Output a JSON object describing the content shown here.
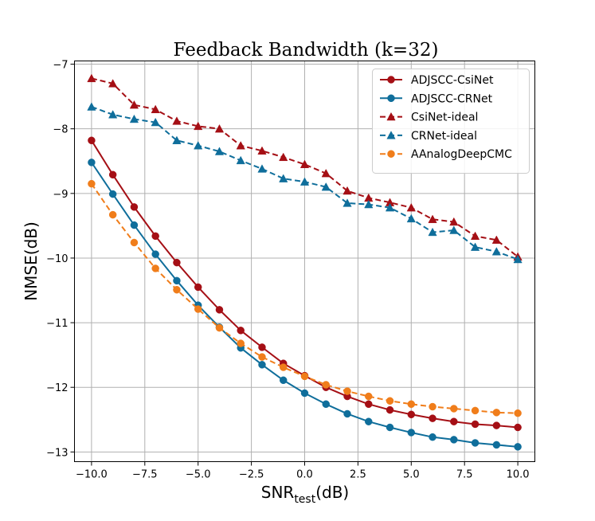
{
  "chart_data": {
    "type": "line",
    "title": "Feedback Bandwidth (k=32)",
    "xlabel": {
      "main": "SNR",
      "subscript": "test",
      "suffix": "(dB)"
    },
    "ylabel": "NMSE(dB)",
    "xlim": [
      -10.8,
      10.8
    ],
    "ylim": [
      -13.15,
      -6.95
    ],
    "xticks": [
      -10.0,
      -7.5,
      -5.0,
      -2.5,
      0.0,
      2.5,
      5.0,
      7.5,
      10.0
    ],
    "xtick_labels": [
      "−10.0",
      "−7.5",
      "−5.0",
      "−2.5",
      "0.0",
      "2.5",
      "5.0",
      "7.5",
      "10.0"
    ],
    "yticks": [
      -13,
      -12,
      -11,
      -10,
      -9,
      -8,
      -7
    ],
    "ytick_labels": [
      "−13",
      "−12",
      "−11",
      "−10",
      "−9",
      "−8",
      "−7"
    ],
    "grid": true,
    "legend_position": "top-right",
    "x": [
      -10,
      -9,
      -8,
      -7,
      -6,
      -5,
      -4,
      -3,
      -2,
      -1,
      0,
      1,
      2,
      3,
      4,
      5,
      6,
      7,
      8,
      9,
      10
    ],
    "series": [
      {
        "name": "ADJSCC-CsiNet",
        "color": "#a50f15",
        "dash": "solid",
        "marker": "circle",
        "values": [
          -8.18,
          -8.71,
          -9.21,
          -9.66,
          -10.07,
          -10.45,
          -10.8,
          -11.12,
          -11.38,
          -11.63,
          -11.82,
          -12.0,
          -12.14,
          -12.26,
          -12.35,
          -12.42,
          -12.48,
          -12.53,
          -12.57,
          -12.59,
          -12.62
        ]
      },
      {
        "name": "ADJSCC-CRNet",
        "color": "#0f6e9b",
        "dash": "solid",
        "marker": "circle",
        "values": [
          -8.52,
          -9.01,
          -9.49,
          -9.94,
          -10.35,
          -10.73,
          -11.07,
          -11.39,
          -11.65,
          -11.89,
          -12.09,
          -12.26,
          -12.41,
          -12.53,
          -12.62,
          -12.7,
          -12.77,
          -12.81,
          -12.86,
          -12.89,
          -12.92
        ]
      },
      {
        "name": "CsiNet-ideal",
        "color": "#a50f15",
        "dash": "dashed",
        "marker": "triangle",
        "values": [
          -7.22,
          -7.3,
          -7.63,
          -7.7,
          -7.88,
          -7.96,
          -8.0,
          -8.26,
          -8.34,
          -8.44,
          -8.55,
          -8.69,
          -8.96,
          -9.07,
          -9.14,
          -9.22,
          -9.4,
          -9.44,
          -9.66,
          -9.72,
          -9.98
        ]
      },
      {
        "name": "CRNet-ideal",
        "color": "#0f6e9b",
        "dash": "dashed",
        "marker": "triangle",
        "values": [
          -7.66,
          -7.78,
          -7.85,
          -7.9,
          -8.18,
          -8.26,
          -8.35,
          -8.49,
          -8.62,
          -8.77,
          -8.82,
          -8.9,
          -9.15,
          -9.17,
          -9.22,
          -9.39,
          -9.6,
          -9.57,
          -9.83,
          -9.9,
          -10.02
        ]
      },
      {
        "name": "AAnalogDeepCMC",
        "color": "#f07d1a",
        "dash": "dashed",
        "marker": "circle",
        "values": [
          -8.85,
          -9.33,
          -9.76,
          -10.16,
          -10.49,
          -10.79,
          -11.08,
          -11.32,
          -11.53,
          -11.69,
          -11.83,
          -11.96,
          -12.06,
          -12.14,
          -12.21,
          -12.26,
          -12.3,
          -12.33,
          -12.36,
          -12.39,
          -12.4
        ]
      }
    ]
  }
}
